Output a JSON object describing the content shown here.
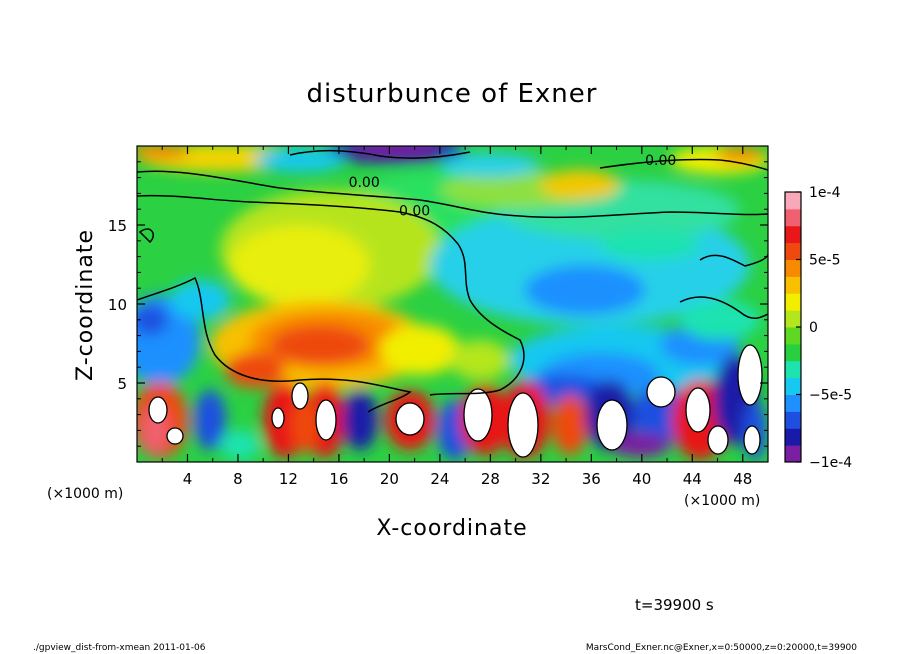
{
  "chart_data": {
    "type": "heatmap",
    "title": "disturbunce of Exner",
    "xlabel": "X-coordinate",
    "ylabel": "Z-coordinate",
    "x_unit": "(×1000 m)",
    "y_unit": "(×1000 m)",
    "xlim": [
      0,
      50
    ],
    "ylim": [
      0,
      20
    ],
    "x_ticks": [
      "4",
      "8",
      "12",
      "16",
      "20",
      "24",
      "28",
      "32",
      "36",
      "40",
      "44",
      "48"
    ],
    "y_ticks": [
      "5",
      "10",
      "15"
    ],
    "x_tick_values": [
      4,
      8,
      12,
      16,
      20,
      24,
      28,
      32,
      36,
      40,
      44,
      48
    ],
    "y_tick_values": [
      5,
      10,
      15
    ],
    "contour_labels": [
      {
        "text": "0.00",
        "x": 18,
        "z": 17.4
      },
      {
        "text": "0.00",
        "x": 22,
        "z": 15.6
      },
      {
        "text": "0.00",
        "x": 41.5,
        "z": 18.8
      }
    ],
    "colorbar": {
      "min": -0.0001,
      "max": 0.0001,
      "tick_labels": [
        "1e-4",
        "5e-5",
        "0",
        "−5e-5",
        "−1e-4"
      ],
      "tick_values": [
        0.0001,
        5e-05,
        0,
        -5e-05,
        -0.0001
      ],
      "colors": [
        "#7b1fa2",
        "#1a1aa8",
        "#1f4fe0",
        "#1e90ff",
        "#18c8f0",
        "#1ee3b0",
        "#28d040",
        "#5ed820",
        "#b4e61e",
        "#f2ee00",
        "#f8c000",
        "#f88a00",
        "#ee4a10",
        "#e81818",
        "#f06070",
        "#f8a8b8"
      ]
    },
    "grid": false,
    "time_label": "t=39900 s",
    "footer_left": "./gpview_dist-from-xmean  2011-01-06",
    "footer_right": "MarsCond_Exner.nc@Exner,x=0:50000,z=0:20000,t=39900"
  }
}
